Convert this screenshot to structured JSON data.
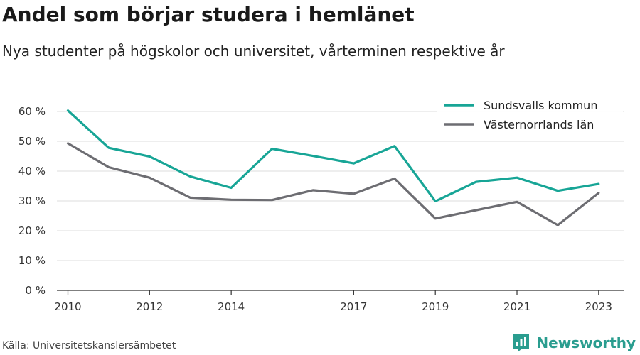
{
  "header": {
    "title": "Andel som börjar studera i hemlänet",
    "subtitle": "Nya studenter på högskolor och universitet, vårterminen respektive år"
  },
  "footer": {
    "source": "Källa: Universitetskanslersämbetet",
    "brand": "Newsworthy"
  },
  "icons": {
    "brand": "newsworthy-logo-icon"
  },
  "colors": {
    "sundsvall": "#17a596",
    "vasternorrland": "#6d6d72",
    "brand": "#2a9d8f"
  },
  "chart_data": {
    "type": "line",
    "title": "Andel som börjar studera i hemlänet",
    "subtitle": "Nya studenter på högskolor och universitet, vårterminen respektive år",
    "xlabel": "",
    "ylabel": "",
    "x": [
      2010,
      2011,
      2012,
      2013,
      2014,
      2015,
      2016,
      2017,
      2018,
      2019,
      2020,
      2021,
      2022,
      2023
    ],
    "x_ticks": [
      "2010",
      "2012",
      "2014",
      "2017",
      "2019",
      "2021",
      "2023"
    ],
    "y_ticks": [
      "0 %",
      "10 %",
      "20 %",
      "30 %",
      "40 %",
      "50 %",
      "60 %"
    ],
    "ylim": [
      0,
      60
    ],
    "grid": "horizontal",
    "legend_position": "top-right",
    "series": [
      {
        "name": "Sundsvalls kommun",
        "color": "#17a596",
        "values": [
          60.3,
          47.8,
          44.9,
          38.2,
          34.4,
          47.5,
          45.1,
          42.6,
          48.4,
          29.9,
          36.4,
          37.8,
          33.4,
          35.7
        ]
      },
      {
        "name": "Västernorrlands län",
        "color": "#6d6d72",
        "values": [
          49.3,
          41.3,
          37.8,
          31.1,
          30.4,
          30.3,
          33.6,
          32.4,
          37.5,
          24.1,
          26.9,
          29.7,
          21.9,
          32.7
        ]
      }
    ]
  }
}
